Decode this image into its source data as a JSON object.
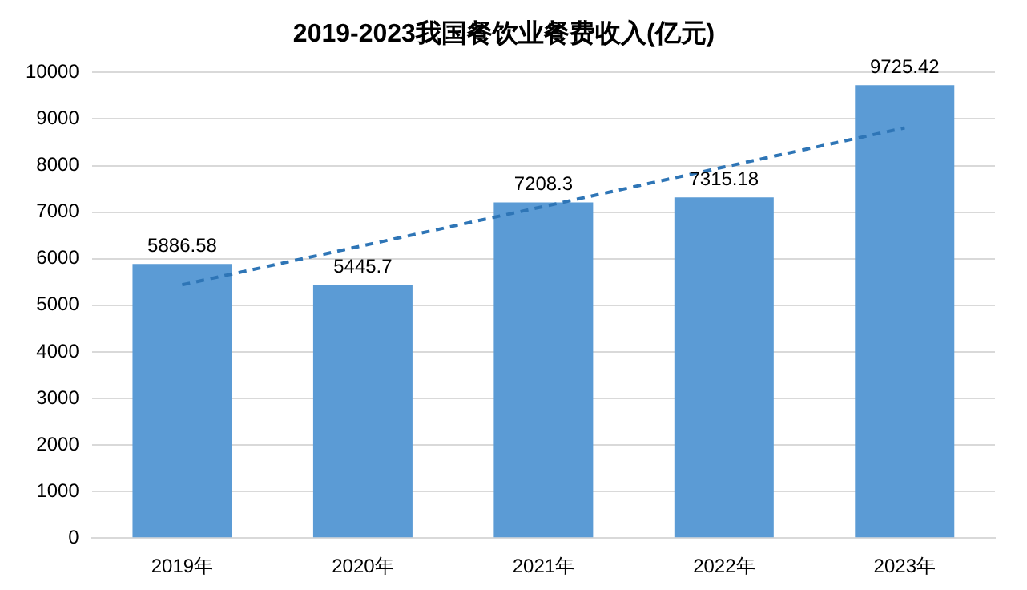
{
  "chart_data": {
    "type": "bar",
    "title": "2019-2023我国餐饮业餐费收入(亿元)",
    "categories": [
      "2019年",
      "2020年",
      "2021年",
      "2022年",
      "2023年"
    ],
    "series": [
      {
        "color": "#5b9bd5",
        "values": [
          5886.58,
          5445.7,
          7208.3,
          7315.18,
          9725.42
        ],
        "data_labels": true
      },
      {
        "type": "line",
        "color": "#2e75b6",
        "line_style": "dashed",
        "marker": "none",
        "values": [
          5440,
          6280,
          7120,
          7970,
          8810
        ]
      }
    ],
    "ylim": [
      0,
      10000
    ],
    "yticks": [
      0,
      1000,
      2000,
      3000,
      4000,
      5000,
      6000,
      7000,
      8000,
      9000,
      10000
    ],
    "grid": "y",
    "legend": false
  }
}
